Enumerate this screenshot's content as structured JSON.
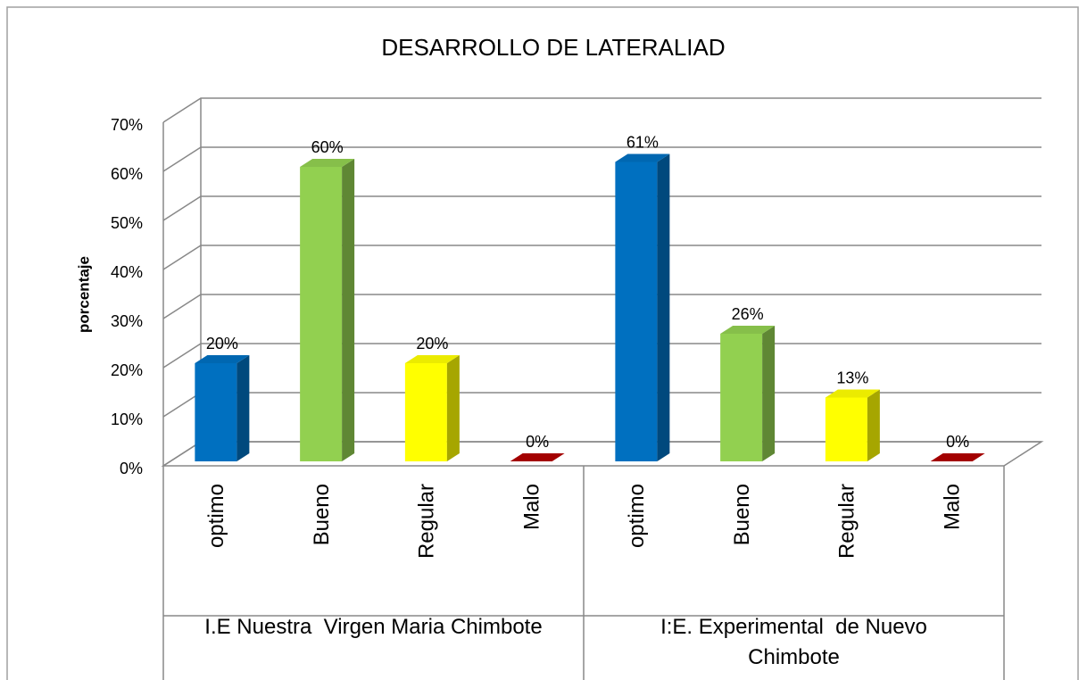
{
  "chart_data": {
    "type": "bar3d",
    "title": "DESARROLLO DE LATERALIAD",
    "y_label": "porcentaje",
    "colors": [
      "#0070c0",
      "#92d050",
      "#ffff00",
      "#c00000"
    ],
    "groups": [
      {
        "name": "I.E Nuestra  Virgen Maria Chimbote",
        "categories": [
          "optimo",
          "Bueno",
          "Regular",
          "Malo"
        ],
        "values": [
          20,
          60,
          20,
          0
        ],
        "value_labels": [
          "20%",
          "60%",
          "20%",
          "0%"
        ]
      },
      {
        "name": "I:E. Experimental  de Nuevo Chimbote",
        "categories": [
          "optimo",
          "Bueno",
          "Regular",
          "Malo"
        ],
        "values": [
          61,
          26,
          13,
          0
        ],
        "value_labels": [
          "61%",
          "26%",
          "13%",
          "0%"
        ]
      }
    ],
    "ylim": [
      0,
      70
    ],
    "yticks": [
      {
        "value": 0,
        "label": "0%"
      },
      {
        "value": 10,
        "label": "10%"
      },
      {
        "value": 20,
        "label": "20%"
      },
      {
        "value": 30,
        "label": "30%"
      },
      {
        "value": 40,
        "label": "40%"
      },
      {
        "value": 50,
        "label": "50%"
      },
      {
        "value": 60,
        "label": "60%"
      },
      {
        "value": 70,
        "label": "70%"
      }
    ],
    "grid": true
  }
}
